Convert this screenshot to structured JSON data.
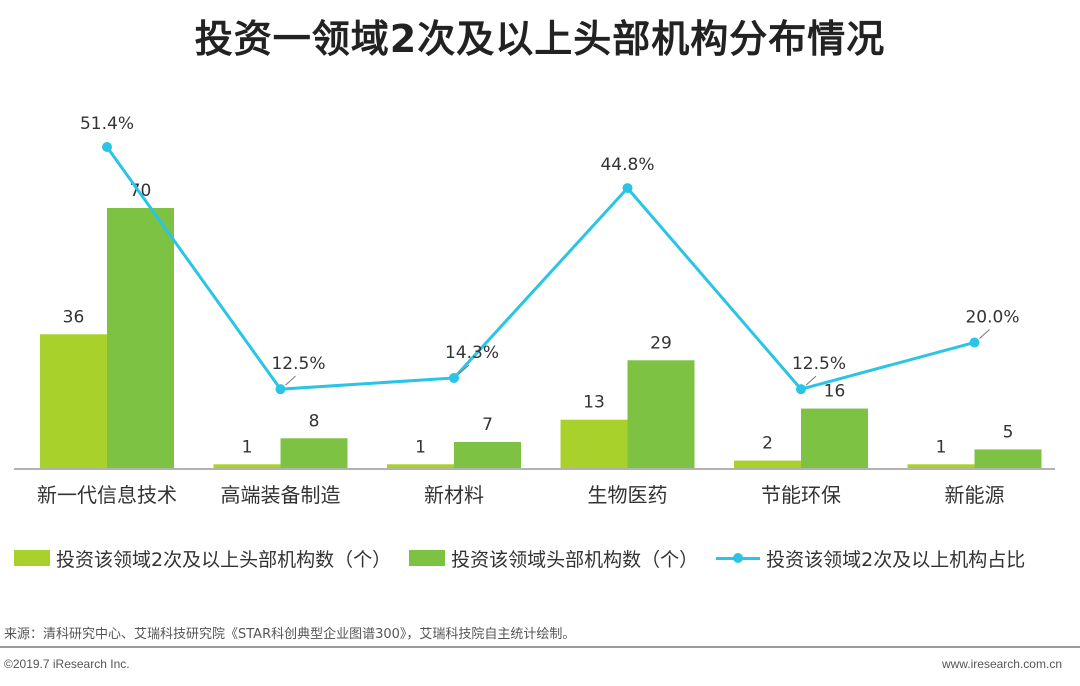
{
  "chart_data": {
    "type": "bar",
    "title": "投资一领域2次及以上头部机构分布情况",
    "categories": [
      "新一代信息技术",
      "高端装备制造",
      "新材料",
      "生物医药",
      "节能环保",
      "新能源"
    ],
    "series": [
      {
        "name": "投资该领域2次及以上头部机构数（个）",
        "type": "bar",
        "color": "#a8d22b",
        "values": [
          36,
          1,
          1,
          13,
          2,
          1
        ],
        "labels": [
          "36",
          "1",
          "1",
          "13",
          "2",
          "1"
        ]
      },
      {
        "name": "投资该领域头部机构数（个）",
        "type": "bar",
        "color": "#7dc242",
        "values": [
          70,
          8,
          7,
          29,
          16,
          5
        ],
        "labels": [
          "70",
          "8",
          "7",
          "29",
          "16",
          "5"
        ]
      },
      {
        "name": "投资该领域2次及以上机构占比",
        "type": "line",
        "color": "#29c4e6",
        "values": [
          51.4,
          12.5,
          14.3,
          44.8,
          12.5,
          20.0
        ],
        "labels": [
          "51.4%",
          "12.5%",
          "14.3%",
          "44.8%",
          "12.5%",
          "20.0%"
        ]
      }
    ],
    "ylim": [
      0,
      80
    ],
    "y2lim": [
      0,
      60
    ],
    "xlabel": "",
    "ylabel": "",
    "legend_position": "bottom"
  },
  "footer": {
    "source": "来源：清科研究中心、艾瑞科技研究院《STAR科创典型企业图谱300》，艾瑞科技院自主统计绘制。",
    "copyright": "©2019.7 iResearch Inc.",
    "website": "www.iresearch.com.cn"
  }
}
